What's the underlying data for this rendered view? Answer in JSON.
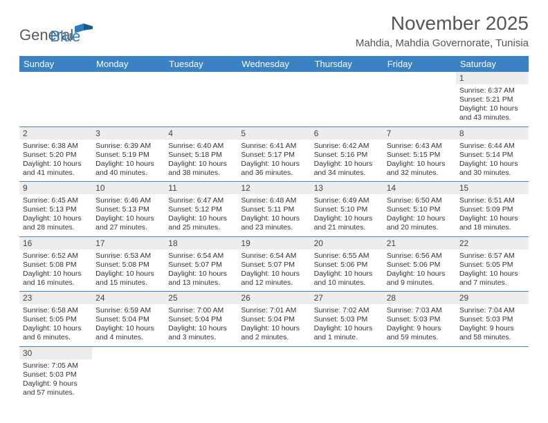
{
  "brand": {
    "part1": "General",
    "part2": "Blue"
  },
  "title": "November 2025",
  "location": "Mahdia, Mahdia Governorate, Tunisia",
  "columns": [
    "Sunday",
    "Monday",
    "Tuesday",
    "Wednesday",
    "Thursday",
    "Friday",
    "Saturday"
  ],
  "colors": {
    "header_bg": "#3b82c4",
    "header_fg": "#ffffff",
    "rule": "#3b82c4",
    "daynum_bg": "#ededed",
    "text": "#333333",
    "title": "#555555"
  },
  "weeks": [
    [
      null,
      null,
      null,
      null,
      null,
      null,
      {
        "n": "1",
        "sunrise": "Sunrise: 6:37 AM",
        "sunset": "Sunset: 5:21 PM",
        "daylight": "Daylight: 10 hours and 43 minutes."
      }
    ],
    [
      {
        "n": "2",
        "sunrise": "Sunrise: 6:38 AM",
        "sunset": "Sunset: 5:20 PM",
        "daylight": "Daylight: 10 hours and 41 minutes."
      },
      {
        "n": "3",
        "sunrise": "Sunrise: 6:39 AM",
        "sunset": "Sunset: 5:19 PM",
        "daylight": "Daylight: 10 hours and 40 minutes."
      },
      {
        "n": "4",
        "sunrise": "Sunrise: 6:40 AM",
        "sunset": "Sunset: 5:18 PM",
        "daylight": "Daylight: 10 hours and 38 minutes."
      },
      {
        "n": "5",
        "sunrise": "Sunrise: 6:41 AM",
        "sunset": "Sunset: 5:17 PM",
        "daylight": "Daylight: 10 hours and 36 minutes."
      },
      {
        "n": "6",
        "sunrise": "Sunrise: 6:42 AM",
        "sunset": "Sunset: 5:16 PM",
        "daylight": "Daylight: 10 hours and 34 minutes."
      },
      {
        "n": "7",
        "sunrise": "Sunrise: 6:43 AM",
        "sunset": "Sunset: 5:15 PM",
        "daylight": "Daylight: 10 hours and 32 minutes."
      },
      {
        "n": "8",
        "sunrise": "Sunrise: 6:44 AM",
        "sunset": "Sunset: 5:14 PM",
        "daylight": "Daylight: 10 hours and 30 minutes."
      }
    ],
    [
      {
        "n": "9",
        "sunrise": "Sunrise: 6:45 AM",
        "sunset": "Sunset: 5:13 PM",
        "daylight": "Daylight: 10 hours and 28 minutes."
      },
      {
        "n": "10",
        "sunrise": "Sunrise: 6:46 AM",
        "sunset": "Sunset: 5:13 PM",
        "daylight": "Daylight: 10 hours and 27 minutes."
      },
      {
        "n": "11",
        "sunrise": "Sunrise: 6:47 AM",
        "sunset": "Sunset: 5:12 PM",
        "daylight": "Daylight: 10 hours and 25 minutes."
      },
      {
        "n": "12",
        "sunrise": "Sunrise: 6:48 AM",
        "sunset": "Sunset: 5:11 PM",
        "daylight": "Daylight: 10 hours and 23 minutes."
      },
      {
        "n": "13",
        "sunrise": "Sunrise: 6:49 AM",
        "sunset": "Sunset: 5:10 PM",
        "daylight": "Daylight: 10 hours and 21 minutes."
      },
      {
        "n": "14",
        "sunrise": "Sunrise: 6:50 AM",
        "sunset": "Sunset: 5:10 PM",
        "daylight": "Daylight: 10 hours and 20 minutes."
      },
      {
        "n": "15",
        "sunrise": "Sunrise: 6:51 AM",
        "sunset": "Sunset: 5:09 PM",
        "daylight": "Daylight: 10 hours and 18 minutes."
      }
    ],
    [
      {
        "n": "16",
        "sunrise": "Sunrise: 6:52 AM",
        "sunset": "Sunset: 5:08 PM",
        "daylight": "Daylight: 10 hours and 16 minutes."
      },
      {
        "n": "17",
        "sunrise": "Sunrise: 6:53 AM",
        "sunset": "Sunset: 5:08 PM",
        "daylight": "Daylight: 10 hours and 15 minutes."
      },
      {
        "n": "18",
        "sunrise": "Sunrise: 6:54 AM",
        "sunset": "Sunset: 5:07 PM",
        "daylight": "Daylight: 10 hours and 13 minutes."
      },
      {
        "n": "19",
        "sunrise": "Sunrise: 6:54 AM",
        "sunset": "Sunset: 5:07 PM",
        "daylight": "Daylight: 10 hours and 12 minutes."
      },
      {
        "n": "20",
        "sunrise": "Sunrise: 6:55 AM",
        "sunset": "Sunset: 5:06 PM",
        "daylight": "Daylight: 10 hours and 10 minutes."
      },
      {
        "n": "21",
        "sunrise": "Sunrise: 6:56 AM",
        "sunset": "Sunset: 5:06 PM",
        "daylight": "Daylight: 10 hours and 9 minutes."
      },
      {
        "n": "22",
        "sunrise": "Sunrise: 6:57 AM",
        "sunset": "Sunset: 5:05 PM",
        "daylight": "Daylight: 10 hours and 7 minutes."
      }
    ],
    [
      {
        "n": "23",
        "sunrise": "Sunrise: 6:58 AM",
        "sunset": "Sunset: 5:05 PM",
        "daylight": "Daylight: 10 hours and 6 minutes."
      },
      {
        "n": "24",
        "sunrise": "Sunrise: 6:59 AM",
        "sunset": "Sunset: 5:04 PM",
        "daylight": "Daylight: 10 hours and 4 minutes."
      },
      {
        "n": "25",
        "sunrise": "Sunrise: 7:00 AM",
        "sunset": "Sunset: 5:04 PM",
        "daylight": "Daylight: 10 hours and 3 minutes."
      },
      {
        "n": "26",
        "sunrise": "Sunrise: 7:01 AM",
        "sunset": "Sunset: 5:04 PM",
        "daylight": "Daylight: 10 hours and 2 minutes."
      },
      {
        "n": "27",
        "sunrise": "Sunrise: 7:02 AM",
        "sunset": "Sunset: 5:03 PM",
        "daylight": "Daylight: 10 hours and 1 minute."
      },
      {
        "n": "28",
        "sunrise": "Sunrise: 7:03 AM",
        "sunset": "Sunset: 5:03 PM",
        "daylight": "Daylight: 9 hours and 59 minutes."
      },
      {
        "n": "29",
        "sunrise": "Sunrise: 7:04 AM",
        "sunset": "Sunset: 5:03 PM",
        "daylight": "Daylight: 9 hours and 58 minutes."
      }
    ],
    [
      {
        "n": "30",
        "sunrise": "Sunrise: 7:05 AM",
        "sunset": "Sunset: 5:03 PM",
        "daylight": "Daylight: 9 hours and 57 minutes."
      },
      null,
      null,
      null,
      null,
      null,
      null
    ]
  ]
}
